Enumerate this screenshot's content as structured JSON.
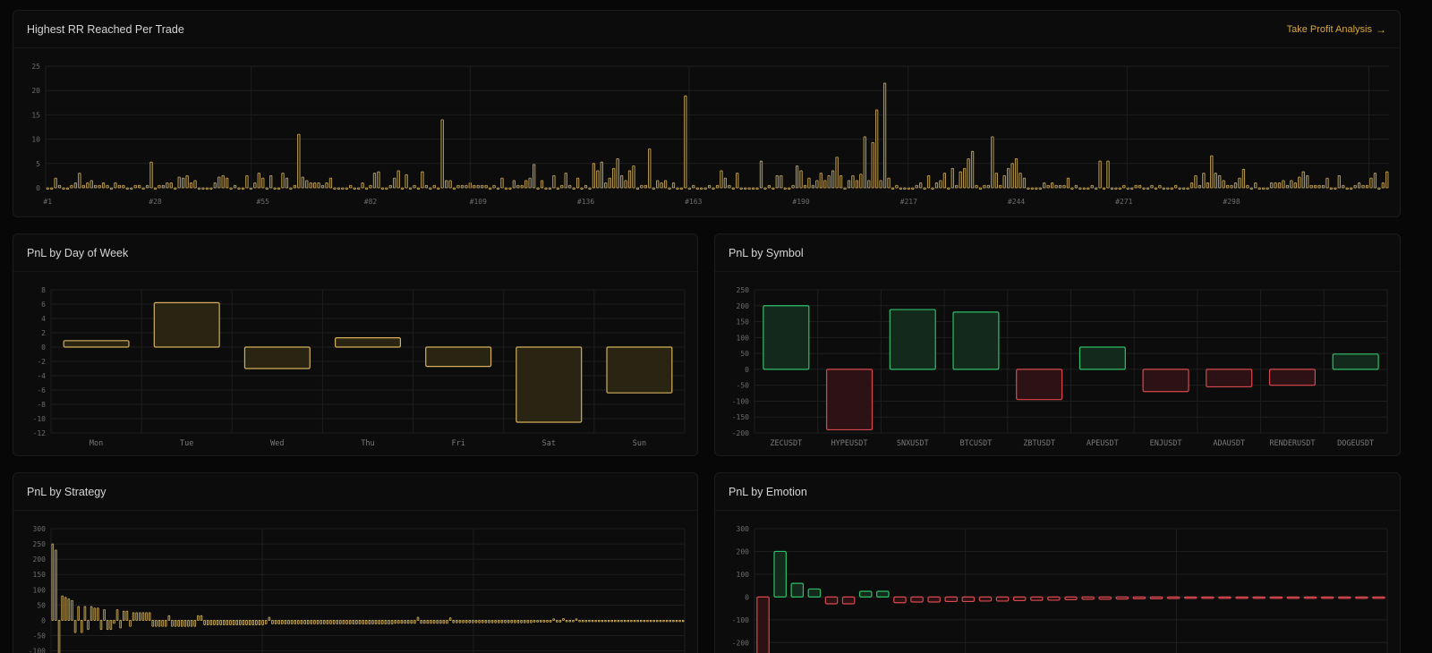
{
  "colors": {
    "gold": "#d4b15a",
    "gold_fill": "#2a2412",
    "green": "#2fbf6a",
    "green_fill": "#12291b",
    "red": "#d9484e",
    "red_fill": "#2c1214",
    "grid": "#1e1e1e",
    "link": "#d4a73e"
  },
  "rr_card": {
    "title": "Highest RR Reached Per Trade",
    "link_label": "Take Profit Analysis",
    "link_icon": "arrow-right-icon"
  },
  "day_card": {
    "title": "PnL by Day of Week"
  },
  "symbol_card": {
    "title": "PnL by Symbol"
  },
  "strategy_card": {
    "title": "PnL by Strategy"
  },
  "emotion_card": {
    "title": "PnL by Emotion"
  },
  "chart_data": [
    {
      "id": "rr",
      "type": "bar",
      "title": "Highest RR Reached Per Trade",
      "ylim": [
        0,
        25
      ],
      "yticks": [
        0,
        5,
        10,
        15,
        20,
        25
      ],
      "xtick_labels": [
        "#1",
        "#28",
        "#55",
        "#82",
        "#109",
        "#136",
        "#163",
        "#190",
        "#217",
        "#244",
        "#271",
        "#298"
      ],
      "count": 318,
      "values": [
        0,
        0,
        2,
        0.5,
        0,
        0,
        0.5,
        1,
        3,
        0.5,
        1,
        1.5,
        0.5,
        0.5,
        1,
        0.5,
        0,
        1,
        0.5,
        0.5,
        0,
        0,
        0.5,
        0.5,
        0,
        0.5,
        5.3,
        0,
        0.5,
        0.5,
        1,
        1,
        0,
        2.2,
        2,
        2.5,
        1,
        1.5,
        0,
        0,
        0,
        0,
        1,
        2.2,
        2.5,
        2,
        0,
        0.5,
        0,
        0,
        2.5,
        0,
        1,
        3,
        2,
        0,
        2.5,
        0,
        0,
        3,
        2,
        0,
        0.5,
        11,
        2.2,
        1.5,
        1,
        1,
        1,
        0.5,
        1,
        2,
        0,
        0,
        0,
        0,
        0.5,
        0,
        0,
        1,
        0,
        0.5,
        3,
        3.3,
        0,
        0,
        0.5,
        2,
        3.5,
        0,
        2.7,
        0,
        0.5,
        0,
        3.3,
        0.5,
        0,
        0.5,
        0,
        14,
        1.5,
        1.5,
        0,
        0.5,
        0.5,
        0.5,
        1,
        0.5,
        0.5,
        0.5,
        0.5,
        0,
        0.5,
        0,
        2,
        0,
        0,
        1.5,
        0.5,
        0.5,
        1.5,
        2,
        4.8,
        0,
        1.5,
        0,
        0,
        2.5,
        0,
        0.5,
        3,
        0.5,
        0,
        2,
        0,
        0.5,
        0,
        5,
        3.5,
        5.3,
        1,
        2,
        4,
        6,
        2.5,
        1.5,
        3.5,
        4.5,
        0,
        0.5,
        0.5,
        8,
        0,
        1.5,
        1,
        1.5,
        0,
        1,
        0,
        0,
        18.9,
        0,
        0.5,
        0,
        0,
        0,
        0.5,
        0,
        0.5,
        3.5,
        2,
        0.5,
        0,
        3,
        0,
        0,
        0,
        0,
        0,
        5.5,
        0,
        0.5,
        0,
        2.5,
        2.5,
        0,
        0,
        0.5,
        4.5,
        3.5,
        0.5,
        2,
        0.5,
        1.5,
        3,
        1.5,
        2.5,
        3.5,
        6.3,
        2.5,
        0,
        1.5,
        2.5,
        1.5,
        2.8,
        10.5,
        1.5,
        9.3,
        16,
        1.5,
        21.5,
        2,
        0,
        0.5,
        0,
        0,
        0,
        0,
        0.5,
        1,
        0,
        2.5,
        0,
        1,
        1.5,
        3,
        0,
        4,
        0.5,
        3.3,
        4,
        6,
        7.5,
        0.5,
        0,
        0.5,
        0.5,
        10.5,
        3,
        0.5,
        2.5,
        4,
        5,
        6,
        3,
        2,
        0,
        0,
        0,
        0,
        1,
        0.5,
        1,
        0.5,
        0.5,
        0.5,
        2,
        0,
        0.5,
        0,
        0,
        0,
        0.5,
        0,
        5.5,
        0,
        5.5,
        0,
        0,
        0,
        0.5,
        0,
        0,
        0.5,
        0.5,
        0,
        0,
        0.5,
        0,
        0.5,
        0,
        0,
        0,
        0.5,
        0,
        0,
        0,
        1,
        2.5,
        0.5,
        3,
        1,
        6.6,
        3,
        2.5,
        1.5,
        0.5,
        0.5,
        1,
        2,
        3.8,
        0.5,
        0,
        1,
        0,
        0,
        0,
        1,
        1,
        1,
        1.5,
        0.5,
        1.5,
        1,
        2.2,
        3.3,
        2.5,
        0.5,
        0.5,
        0.5,
        0.5,
        2,
        0,
        0,
        2.5,
        0.5,
        0,
        0,
        0.5,
        1,
        0.5,
        0.5,
        2,
        3,
        0,
        1,
        3.3
      ]
    },
    {
      "id": "day",
      "type": "bar",
      "title": "PnL by Day of Week",
      "categories": [
        "Mon",
        "Tue",
        "Wed",
        "Thu",
        "Fri",
        "Sat",
        "Sun"
      ],
      "values": [
        0.9,
        6.2,
        -3.0,
        1.3,
        -2.7,
        -10.5,
        -6.4
      ],
      "ylim": [
        -12,
        8
      ],
      "yticks": [
        8,
        6,
        4,
        2,
        0,
        -2,
        -4,
        -6,
        -8,
        -10,
        -12
      ]
    },
    {
      "id": "symbol",
      "type": "bar",
      "title": "PnL by Symbol",
      "categories": [
        "ZECUSDT",
        "HYPEUSDT",
        "SNXUSDT",
        "BTCUSDT",
        "ZBTUSDT",
        "APEUSDT",
        "ENJUSDT",
        "ADAUSDT",
        "RENDERUSDT",
        "DOGEUSDT"
      ],
      "values": [
        200,
        -190,
        188,
        180,
        -95,
        70,
        -70,
        -55,
        -50,
        48
      ],
      "ylim": [
        -200,
        250
      ],
      "yticks": [
        250,
        200,
        150,
        100,
        50,
        0,
        -50,
        -100,
        -150,
        -200
      ]
    },
    {
      "id": "strategy",
      "type": "bar",
      "title": "PnL by Strategy",
      "ylim": [
        -110,
        300
      ],
      "yticks": [
        300,
        250,
        200,
        150,
        100,
        50,
        0,
        -50,
        -100
      ],
      "values": [
        250,
        230,
        -110,
        80,
        75,
        70,
        65,
        -40,
        45,
        -40,
        45,
        -30,
        45,
        40,
        40,
        -30,
        35,
        -30,
        -30,
        -10,
        35,
        -25,
        30,
        30,
        -20,
        25,
        25,
        25,
        25,
        25,
        25,
        -20,
        -20,
        -20,
        -20,
        -20,
        15,
        -20,
        -20,
        -20,
        -20,
        -20,
        -20,
        -20,
        -20,
        15,
        15,
        -15,
        -15,
        -15,
        -15,
        -15,
        -15,
        -15,
        -15,
        -15,
        -15,
        -15,
        -15,
        -15,
        -15,
        -15,
        -15,
        -15,
        -15,
        -15,
        -12,
        10,
        -12,
        -12,
        -12,
        -12,
        -12,
        -12,
        -12,
        -12,
        -12,
        -12,
        -12,
        -12,
        -12,
        -12,
        -12,
        -12,
        -12,
        -12,
        -12,
        -12,
        -12,
        -12,
        -12,
        -12,
        -12,
        -12,
        -12,
        -12,
        -12,
        -12,
        -12,
        -12,
        -12,
        -12,
        -12,
        -12,
        -12,
        -12,
        -10,
        -10,
        -10,
        -10,
        -10,
        -10,
        -10,
        10,
        -10,
        -10,
        -10,
        -10,
        -10,
        -10,
        -10,
        -10,
        -10,
        8,
        -8,
        -8,
        -8,
        -8,
        -8,
        -8,
        -8,
        -8,
        -8,
        -8,
        -8,
        -8,
        -8,
        -8,
        -8,
        -8,
        -8,
        -8,
        -8,
        -8,
        -8,
        -8,
        -8,
        -8,
        -8,
        -6,
        -6,
        -6,
        -6,
        -6,
        -6,
        5,
        -6,
        -6,
        6,
        -5,
        -5,
        -5,
        5,
        -5,
        -5,
        -5,
        -4,
        -4,
        -4,
        -4,
        -4,
        -4,
        -3,
        -3,
        -3,
        -3,
        -3,
        -2,
        -2,
        -2,
        -2,
        -2,
        -2,
        -2,
        -1,
        -1,
        -1,
        -1,
        -1,
        -1,
        -1,
        -1,
        -1,
        -1,
        -1,
        -1
      ]
    },
    {
      "id": "emotion",
      "type": "bar",
      "title": "PnL by Emotion",
      "ylim": [
        -250,
        300
      ],
      "yticks": [
        300,
        200,
        100,
        0,
        -100,
        -200
      ],
      "values": [
        -260,
        200,
        60,
        35,
        -30,
        -30,
        25,
        25,
        -25,
        -22,
        -22,
        -20,
        -20,
        -18,
        -18,
        -16,
        -15,
        -14,
        -12,
        -10,
        -10,
        -9,
        -8,
        -8,
        -7,
        -6,
        -6,
        -5,
        -5,
        -4,
        -4,
        -3,
        -3,
        -2,
        -2,
        -2,
        -1
      ]
    }
  ]
}
